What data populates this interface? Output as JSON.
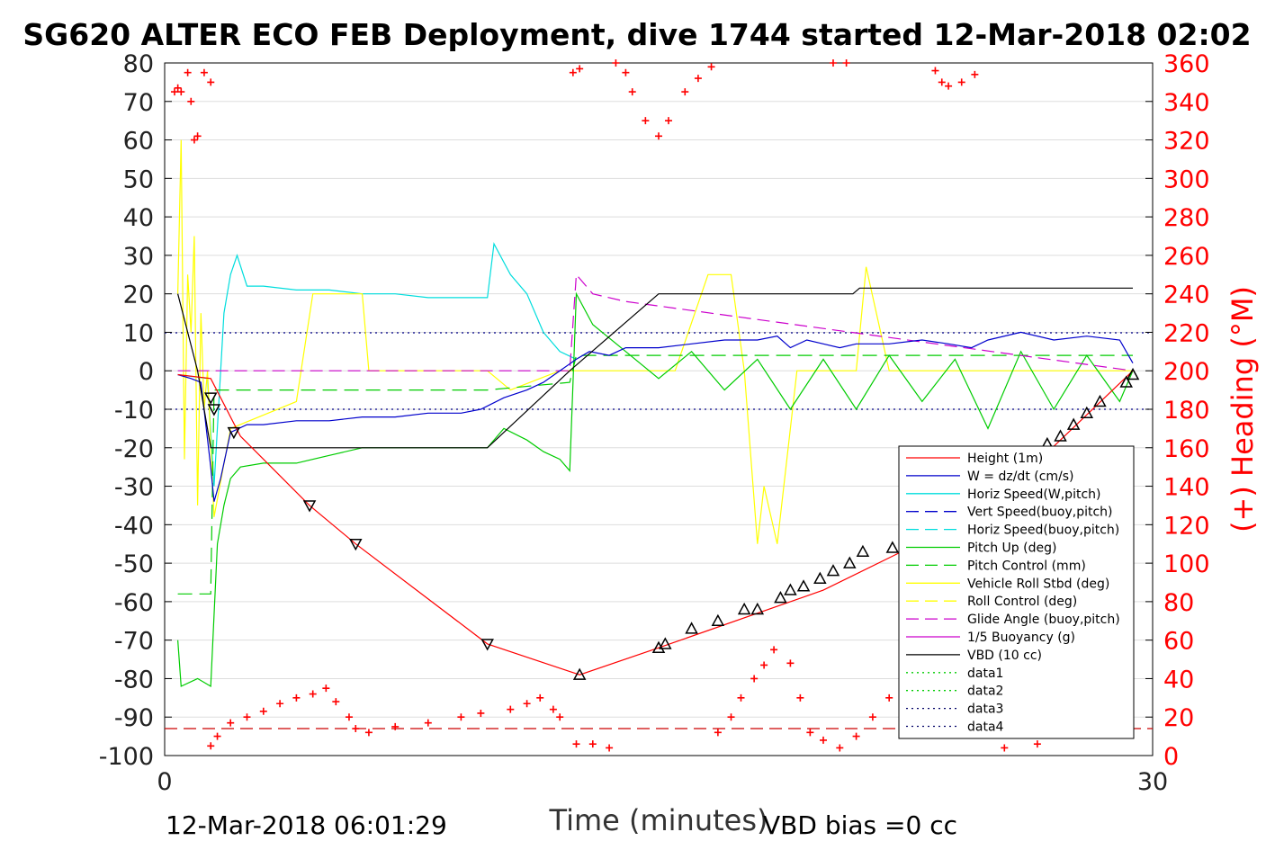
{
  "chart_data": {
    "type": "line",
    "title": "SG620 ALTER ECO FEB Deployment, dive 1744 started 12-Mar-2018 02:02",
    "xlabel": "Time (minutes)",
    "ylabel_right": "(+) Heading (°M)",
    "xlim": [
      0,
      30
    ],
    "ylim_left": [
      -100,
      80
    ],
    "ylim_right": [
      0,
      360
    ],
    "x_ticks": [
      "0",
      "30"
    ],
    "y_ticks_left": [
      "80",
      "70",
      "60",
      "50",
      "40",
      "30",
      "20",
      "10",
      "0",
      "-10",
      "-20",
      "-30",
      "-40",
      "-50",
      "-60",
      "-70",
      "-80",
      "-90",
      "-100"
    ],
    "y_ticks_right": [
      "360",
      "340",
      "320",
      "300",
      "280",
      "260",
      "240",
      "220",
      "200",
      "180",
      "160",
      "140",
      "120",
      "100",
      "80",
      "60",
      "40",
      "20",
      "0"
    ],
    "grid": "horizontal",
    "legend_position": "lower-right",
    "footer_left": "12-Mar-2018 06:01:29",
    "footer_right": "VBD bias =0 cc",
    "legend": [
      {
        "name": "Height (1m)",
        "color": "#ff0000",
        "dash": "solid"
      },
      {
        "name": "W = dz/dt (cm/s)",
        "color": "#0000cc",
        "dash": "solid"
      },
      {
        "name": "Horiz Speed(W,pitch)",
        "color": "#00dddd",
        "dash": "solid"
      },
      {
        "name": "Vert Speed(buoy,pitch)",
        "color": "#0000cc",
        "dash": "long"
      },
      {
        "name": "Horiz Speed(buoy,pitch)",
        "color": "#00dddd",
        "dash": "long"
      },
      {
        "name": "Pitch Up (deg)",
        "color": "#00cc00",
        "dash": "solid"
      },
      {
        "name": "Pitch Control (mm)",
        "color": "#00cc00",
        "dash": "long"
      },
      {
        "name": "Vehicle Roll Stbd (deg)",
        "color": "#ffff00",
        "dash": "solid"
      },
      {
        "name": "Roll Control (deg)",
        "color": "#ffff00",
        "dash": "long"
      },
      {
        "name": "Glide Angle (buoy,pitch)",
        "color": "#cc00cc",
        "dash": "long"
      },
      {
        "name": "1/5 Buoyancy (g)",
        "color": "#cc00cc",
        "dash": "solid"
      },
      {
        "name": "VBD (10 cc)",
        "color": "#000000",
        "dash": "solid"
      },
      {
        "name": "data1",
        "color": "#00cc00",
        "dash": "dotted"
      },
      {
        "name": "data2",
        "color": "#00cc00",
        "dash": "dotted"
      },
      {
        "name": "data3",
        "color": "#000066",
        "dash": "dotted"
      },
      {
        "name": "data4",
        "color": "#000066",
        "dash": "dotted"
      }
    ],
    "series": {
      "depth_triangles": {
        "x": [
          1.4,
          1.5,
          2.1,
          4.4,
          5.8,
          9.8,
          12.6,
          15,
          15.2,
          16,
          16.8,
          17.6,
          18,
          18.7,
          19,
          19.4,
          19.9,
          20.3,
          20.8,
          21.2,
          22.1,
          22.6,
          23,
          23.4,
          23.8,
          24.3,
          24.6,
          25.2,
          25.7,
          26,
          26.4,
          26.8,
          27.2,
          27.6,
          28,
          28.4,
          29.2,
          29.4
        ],
        "y": [
          -7,
          -10,
          -16,
          -35,
          -45,
          -71,
          -79,
          -72,
          -71,
          -67,
          -65,
          -62,
          -62,
          -59,
          -57,
          -56,
          -54,
          -52,
          -50,
          -47,
          -46,
          -43,
          -42,
          -40,
          -38,
          -35,
          -33,
          -30,
          -27,
          -25,
          -22,
          -19,
          -17,
          -14,
          -11,
          -8,
          -3,
          -1
        ]
      },
      "height_red": {
        "x": [
          0.4,
          1.4,
          2.3,
          4.4,
          5.8,
          9.8,
          12.6,
          15,
          20,
          25,
          29.4
        ],
        "y": [
          -1,
          -2,
          -17,
          -35,
          -45,
          -71,
          -79,
          -72,
          -57,
          -36,
          0
        ]
      },
      "W": {
        "x": [
          0.4,
          0.8,
          1.1,
          1.4,
          1.5,
          1.7,
          2.0,
          2.5,
          3.0,
          4.0,
          5.0,
          6.0,
          7.0,
          8.0,
          9.0,
          9.6,
          10.3,
          11.0,
          11.5,
          12.0,
          12.5,
          12.9,
          13.5,
          14.0,
          15.0,
          16.0,
          17.0,
          18.0,
          18.6,
          19.0,
          19.5,
          20.0,
          20.5,
          21.0,
          22.0,
          23.0,
          23.8,
          24.5,
          25.0,
          26.0,
          27.0,
          28.0,
          29.0,
          29.4
        ],
        "y": [
          -1,
          -2,
          -3,
          -25,
          -34,
          -28,
          -16,
          -14,
          -14,
          -13,
          -13,
          -12,
          -12,
          -11,
          -11,
          -10,
          -7,
          -5,
          -3,
          0,
          3,
          5,
          4,
          6,
          6,
          7,
          8,
          8,
          9,
          6,
          8,
          7,
          6,
          7,
          7,
          8,
          7,
          6,
          8,
          10,
          8,
          9,
          8,
          2
        ]
      },
      "horiz_speed": {
        "x": [
          0.4,
          1.3,
          1.5,
          1.8,
          2.0,
          2.2,
          2.5,
          3.0,
          4.0,
          5.0,
          6.0,
          7.0,
          8.0,
          9.0,
          9.8,
          10.0,
          10.5,
          11.0,
          11.5,
          12.0,
          12.5
        ],
        "y": [
          -1,
          -2,
          -30,
          15,
          25,
          30,
          22,
          22,
          21,
          21,
          20,
          20,
          19,
          19,
          19,
          33,
          25,
          20,
          10,
          5,
          3
        ]
      },
      "vbd": {
        "x": [
          0.4,
          0.7,
          1.0,
          1.4,
          9.8,
          12.3,
          15.0,
          20.9,
          21.1,
          29.4
        ],
        "y": [
          20,
          10,
          0,
          -20,
          -20,
          0,
          20,
          20,
          21.5,
          21.5
        ]
      },
      "pitch_up": {
        "x": [
          0.4,
          0.5,
          1.0,
          1.4,
          1.6,
          1.8,
          2.0,
          2.3,
          3.0,
          4.0,
          5.0,
          6.0,
          7.0,
          8.0,
          9.0,
          9.8,
          10.3,
          11.0,
          11.5,
          12.0,
          12.3,
          12.5,
          13.0,
          14.0,
          15.0,
          16.0,
          17.0,
          18.0,
          19.0,
          20.0,
          21.0,
          22.0,
          23.0,
          24.0,
          25.0,
          26.0,
          27.0,
          28.0,
          29.0,
          29.4
        ],
        "y": [
          -70,
          -82,
          -80,
          -82,
          -45,
          -35,
          -28,
          -25,
          -24,
          -24,
          -22,
          -20,
          -20,
          -20,
          -20,
          -20,
          -15,
          -18,
          -21,
          -23,
          -26,
          20,
          12,
          5,
          -2,
          5,
          -5,
          3,
          -10,
          3,
          -10,
          4,
          -8,
          3,
          -15,
          5,
          -10,
          4,
          -8,
          0
        ]
      },
      "pitch_control": {
        "x": [
          0.4,
          1.4,
          1.5,
          1.8,
          3.0,
          6.0,
          9.8,
          12.3,
          12.5,
          15.0,
          20.0,
          25.0,
          29.4
        ],
        "y": [
          -58,
          -58,
          -5,
          -5,
          -5,
          -5,
          -5,
          -3,
          4,
          4,
          4,
          4,
          4
        ]
      },
      "vehicle_roll": {
        "x": [
          0.4,
          0.5,
          0.6,
          0.7,
          0.8,
          0.9,
          1.0,
          1.1,
          1.2,
          1.3,
          1.5,
          2.0,
          4.0,
          4.5,
          6.0,
          6.2,
          9.8,
          10.5,
          12.0,
          15.0,
          15.5,
          16.5,
          17.2,
          17.6,
          18.0,
          18.2,
          18.6,
          19.2,
          19.5,
          20.0,
          21.0,
          21.3,
          22.0,
          25.0,
          29.4
        ],
        "y": [
          20,
          60,
          -23,
          25,
          10,
          35,
          -35,
          15,
          -10,
          0,
          -38,
          -15,
          -8,
          20,
          20,
          0,
          0,
          -5,
          0,
          0,
          0,
          25,
          25,
          0,
          -45,
          -30,
          -45,
          0,
          0,
          0,
          0,
          27,
          0,
          0,
          0
        ]
      },
      "glide_angle": {
        "x": [
          0.4,
          12.3,
          12.5,
          13.0,
          14.0,
          29.4
        ],
        "y": [
          0,
          0,
          25,
          20,
          18,
          0
        ]
      },
      "heading_upper": {
        "x": [
          0.3,
          0.4,
          0.5,
          0.7,
          0.8,
          0.9,
          1.0,
          1.2,
          1.4,
          12.4,
          12.6,
          13.7,
          14.0,
          14.2,
          14.6,
          15.0,
          15.3,
          15.8,
          16.2,
          16.6,
          20.3,
          20.7,
          23.4,
          23.6,
          23.8,
          24.2,
          24.6
        ],
        "y": [
          345,
          347,
          345,
          355,
          340,
          320,
          322,
          355,
          350,
          355,
          357,
          362,
          355,
          345,
          330,
          322,
          330,
          345,
          352,
          358,
          360,
          360,
          356,
          350,
          348,
          350,
          354
        ]
      },
      "heading_lower": {
        "x": [
          1.4,
          1.6,
          2.0,
          2.5,
          3.0,
          3.5,
          4.0,
          4.5,
          4.9,
          5.2,
          5.6,
          5.8,
          6.2,
          7.0,
          8.0,
          9.0,
          9.6,
          10.5,
          11.0,
          11.4,
          11.8,
          12.0,
          12.5,
          13.0,
          13.5,
          16.8,
          17.2,
          17.5,
          17.9,
          18.2,
          18.5,
          19.0,
          19.3,
          19.6,
          20.0,
          20.5,
          21.0,
          21.5,
          22.0,
          23.5,
          24.0,
          25.0,
          25.5,
          26.5
        ],
        "y": [
          5,
          10,
          17,
          20,
          23,
          27,
          30,
          32,
          35,
          28,
          20,
          14,
          12,
          15,
          17,
          20,
          22,
          24,
          27,
          30,
          24,
          20,
          6,
          6,
          4,
          12,
          20,
          30,
          40,
          47,
          55,
          48,
          30,
          12,
          8,
          4,
          10,
          20,
          30,
          38,
          36,
          30,
          4,
          6
        ]
      },
      "heading_reference": {
        "value": 14
      }
    }
  }
}
